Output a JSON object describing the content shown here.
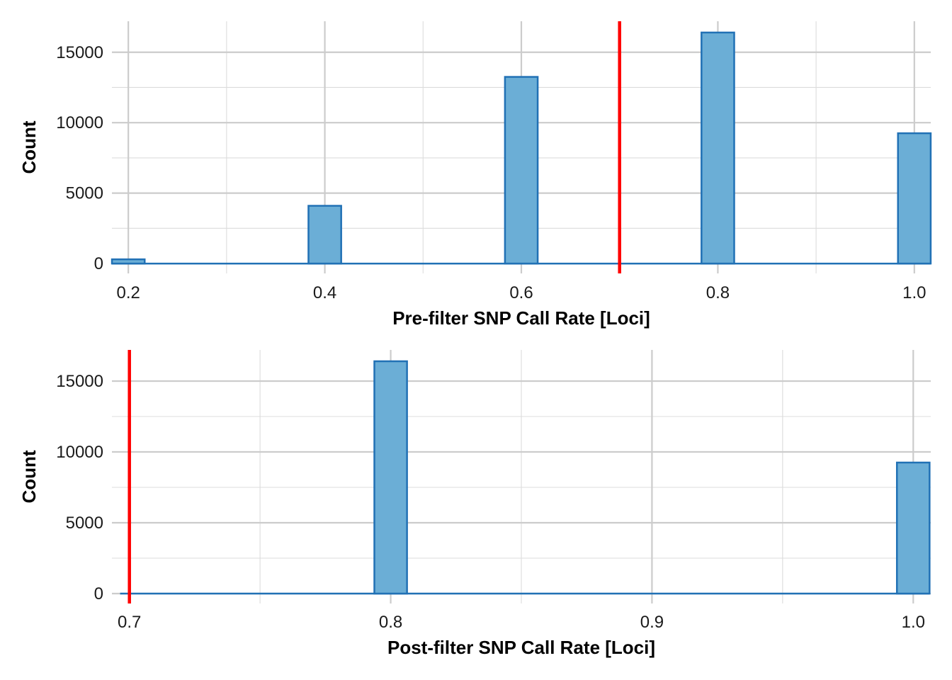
{
  "colors": {
    "bar_fill": "#6baed6",
    "bar_stroke": "#2171b5",
    "threshold": "#ff0000",
    "grid_major": "#cccccc",
    "grid_minor": "#dcdcdc"
  },
  "chart_data": [
    {
      "type": "bar",
      "xlabel": "Pre-filter SNP Call Rate [Loci]",
      "ylabel": "Count",
      "xlim": [
        0.1833,
        1.0167
      ],
      "ylim": [
        -700,
        17200
      ],
      "xticks": [
        0.2,
        0.4,
        0.6,
        0.8,
        1.0
      ],
      "xtick_labels": [
        "0.2",
        "0.4",
        "0.6",
        "0.8",
        "1.0"
      ],
      "xminor": [
        0.3,
        0.5,
        0.7,
        0.9
      ],
      "yticks": [
        0,
        5000,
        10000,
        15000
      ],
      "ytick_labels": [
        "0",
        "5000",
        "10000",
        "15000"
      ],
      "yminor": [
        2500,
        7500,
        12500
      ],
      "bin_width": 0.0333,
      "bins": [
        {
          "x": 0.2,
          "count": 300
        },
        {
          "x": 0.4,
          "count": 4100
        },
        {
          "x": 0.6,
          "count": 13250
        },
        {
          "x": 0.8,
          "count": 16400
        },
        {
          "x": 1.0,
          "count": 9250
        }
      ],
      "threshold": 0.7,
      "grid": true
    },
    {
      "type": "bar",
      "xlabel": "Post-filter SNP Call Rate [Loci]",
      "ylabel": "Count",
      "xlim": [
        0.6933,
        1.0067
      ],
      "ylim": [
        -700,
        17200
      ],
      "xticks": [
        0.7,
        0.8,
        0.9,
        1.0
      ],
      "xtick_labels": [
        "0.7",
        "0.8",
        "0.9",
        "1.0"
      ],
      "xminor": [
        0.75,
        0.85,
        0.95
      ],
      "yticks": [
        0,
        5000,
        10000,
        15000
      ],
      "ytick_labels": [
        "0",
        "5000",
        "10000",
        "15000"
      ],
      "yminor": [
        2500,
        7500,
        12500
      ],
      "bin_width": 0.0125,
      "bins": [
        {
          "x": 0.8,
          "count": 16400
        },
        {
          "x": 1.0,
          "count": 9250
        }
      ],
      "threshold": 0.7,
      "grid": true
    }
  ]
}
